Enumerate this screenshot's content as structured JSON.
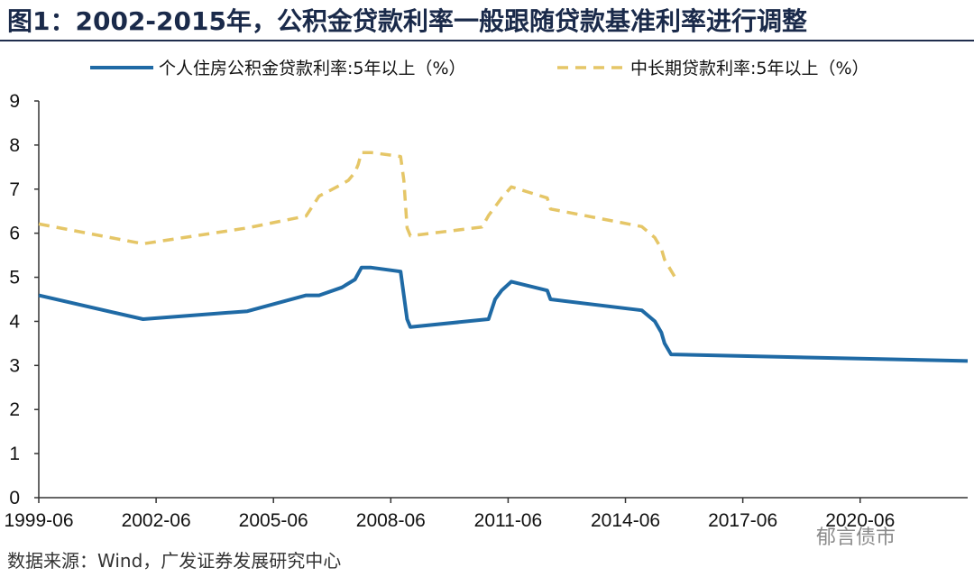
{
  "header": {
    "title": "图1：2002-2015年，公积金贷款利率一般跟随贷款基准利率进行调整"
  },
  "footer": {
    "source": "数据来源：Wind，广发证券发展研究中心",
    "watermark": "郁言债市"
  },
  "chart_data": {
    "type": "line",
    "title": "",
    "xlabel": "",
    "ylabel": "",
    "ylim": [
      0,
      9
    ],
    "yticks": [
      "0",
      "1",
      "2",
      "3",
      "4",
      "5",
      "6",
      "7",
      "8",
      "9"
    ],
    "xlim": [
      "1999-06",
      "2023-03"
    ],
    "xticks": [
      "1999-06",
      "2002-06",
      "2005-06",
      "2008-06",
      "2011-06",
      "2014-06",
      "2017-06",
      "2020-06"
    ],
    "grid": false,
    "legend_position": "top",
    "series": [
      {
        "name": "个人住房公积金贷款利率:5年以上（%）",
        "color": "#1f6aa5",
        "style": "solid",
        "points": [
          [
            "1999-06",
            4.59
          ],
          [
            "2002-02",
            4.05
          ],
          [
            "2004-10",
            4.23
          ],
          [
            "2006-04",
            4.59
          ],
          [
            "2006-08",
            4.59
          ],
          [
            "2007-03",
            4.77
          ],
          [
            "2007-07",
            4.95
          ],
          [
            "2007-09",
            5.22
          ],
          [
            "2007-12",
            5.22
          ],
          [
            "2008-09",
            5.13
          ],
          [
            "2008-10",
            4.59
          ],
          [
            "2008-11",
            4.05
          ],
          [
            "2008-12",
            3.87
          ],
          [
            "2010-12",
            4.05
          ],
          [
            "2011-02",
            4.5
          ],
          [
            "2011-04",
            4.7
          ],
          [
            "2011-07",
            4.9
          ],
          [
            "2012-06",
            4.7
          ],
          [
            "2012-07",
            4.5
          ],
          [
            "2014-11",
            4.25
          ],
          [
            "2015-03",
            4.0
          ],
          [
            "2015-05",
            3.75
          ],
          [
            "2015-06",
            3.5
          ],
          [
            "2015-08",
            3.25
          ],
          [
            "2023-03",
            3.1
          ]
        ]
      },
      {
        "name": "中长期贷款利率:5年以上（%）",
        "color": "#e5c667",
        "style": "dashed",
        "points": [
          [
            "1999-06",
            6.21
          ],
          [
            "2002-02",
            5.76
          ],
          [
            "2004-10",
            6.12
          ],
          [
            "2006-04",
            6.39
          ],
          [
            "2006-08",
            6.84
          ],
          [
            "2007-03",
            7.11
          ],
          [
            "2007-05",
            7.2
          ],
          [
            "2007-07",
            7.38
          ],
          [
            "2007-08",
            7.56
          ],
          [
            "2007-09",
            7.83
          ],
          [
            "2007-12",
            7.83
          ],
          [
            "2008-09",
            7.74
          ],
          [
            "2008-10",
            7.2
          ],
          [
            "2008-11",
            6.12
          ],
          [
            "2008-12",
            5.94
          ],
          [
            "2010-10",
            6.14
          ],
          [
            "2010-12",
            6.4
          ],
          [
            "2011-02",
            6.6
          ],
          [
            "2011-04",
            6.8
          ],
          [
            "2011-07",
            7.05
          ],
          [
            "2012-06",
            6.8
          ],
          [
            "2012-07",
            6.55
          ],
          [
            "2014-11",
            6.15
          ],
          [
            "2015-03",
            5.9
          ],
          [
            "2015-05",
            5.65
          ],
          [
            "2015-06",
            5.4
          ],
          [
            "2015-08",
            5.15
          ],
          [
            "2015-10",
            4.9
          ]
        ]
      }
    ]
  }
}
